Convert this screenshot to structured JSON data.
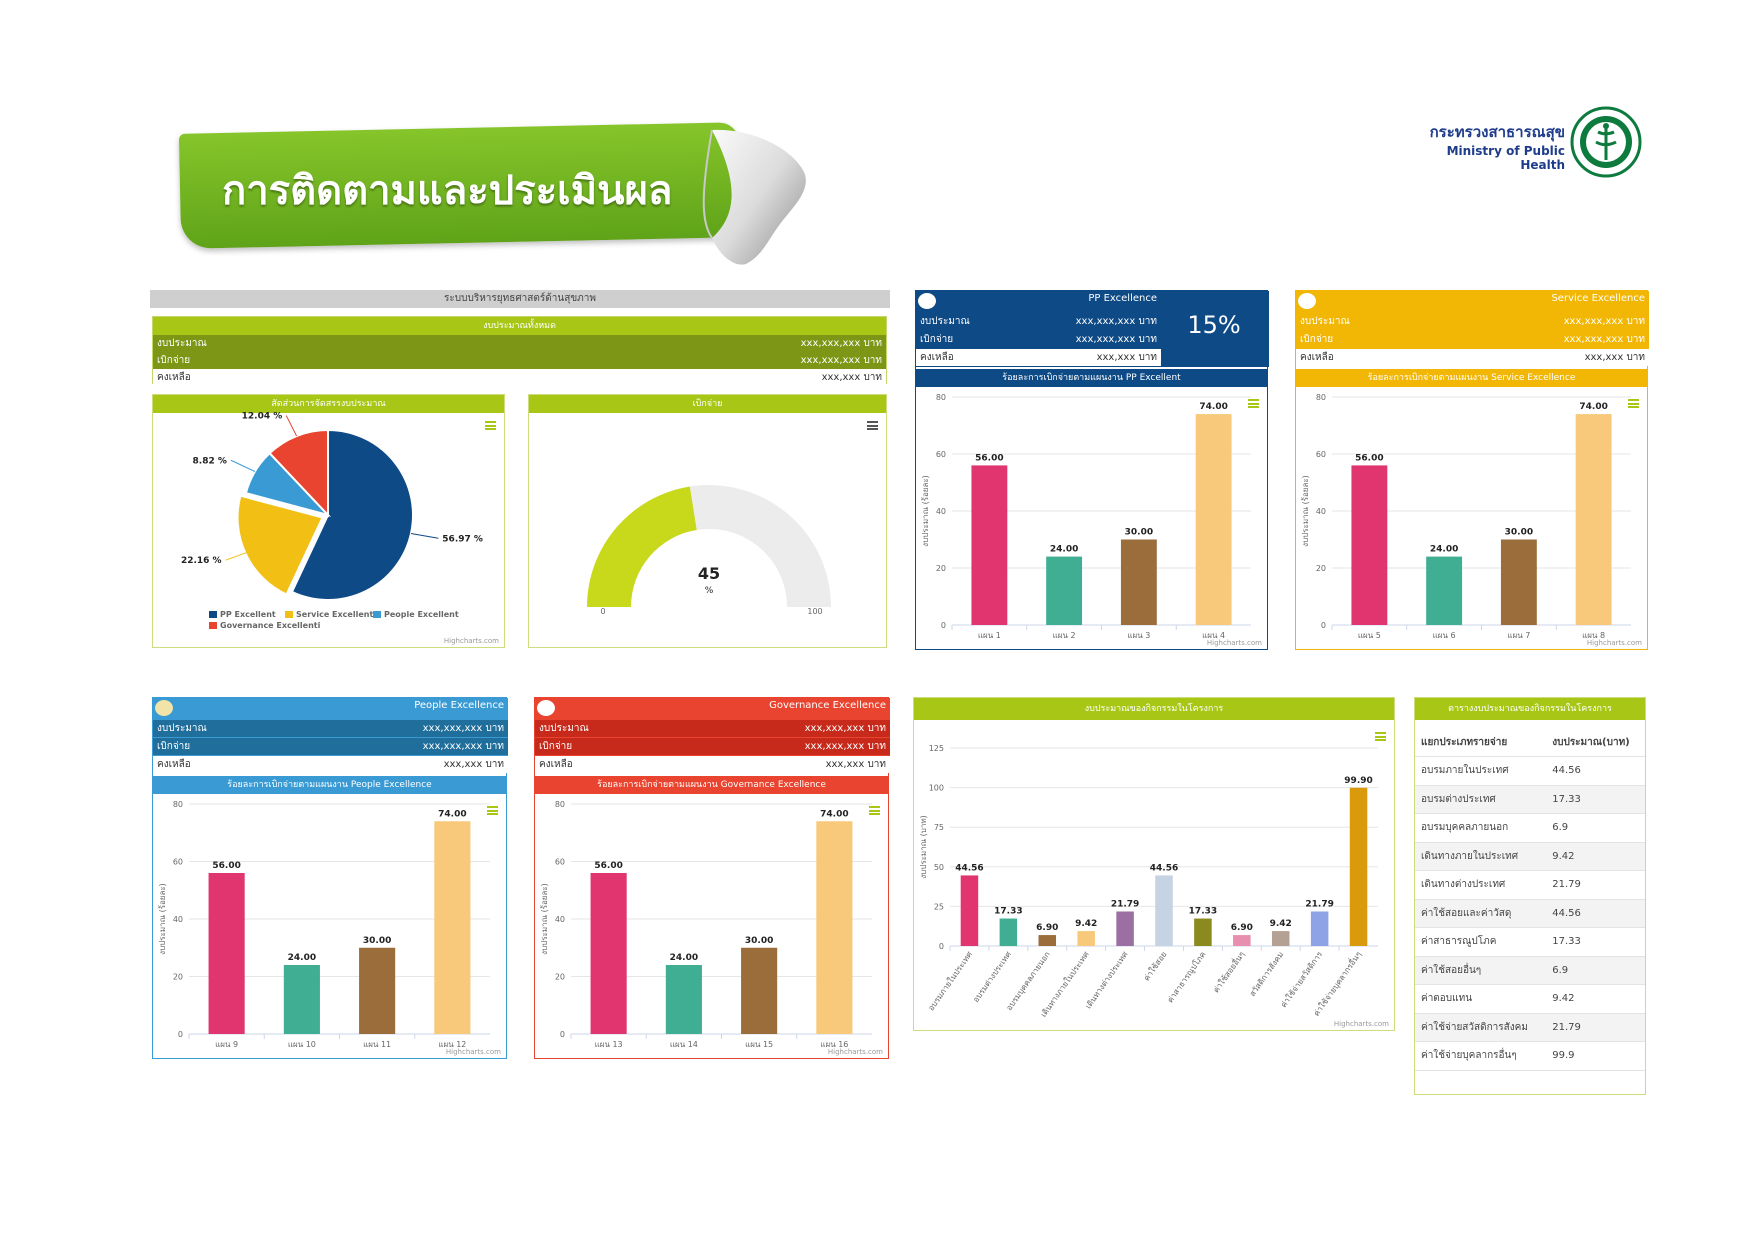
{
  "banner": {
    "title": "การติดตามและประเมินผล"
  },
  "logo": {
    "thai": "กระทรวงสาธารณสุข",
    "english": "Ministry of Public Health"
  },
  "overview": {
    "header": "ระบบบริหารยุทธศาสตร์ด้านสุขภาพ",
    "subheader": "งบประมาณทั้งหมด",
    "rows": [
      {
        "label": "งบประมาณ",
        "value": "xxx,xxx,xxx บาท"
      },
      {
        "label": "เบิกจ่าย",
        "value": "xxx,xxx,xxx บาท"
      },
      {
        "label": "คงเหลือ",
        "value": "xxx,xxx บาท"
      }
    ]
  },
  "pie_panel": {
    "title": "สัดส่วนการจัดสรรงบประมาณ",
    "credit": "Highcharts.com"
  },
  "gauge_panel": {
    "title": "เบิกจ่าย",
    "value": "45",
    "unit": "%",
    "min": "0",
    "max": "100"
  },
  "pp": {
    "name": "PP Excellence",
    "percent": "15%",
    "rows": [
      {
        "label": "งบประมาณ",
        "value": "xxx,xxx,xxx บาท"
      },
      {
        "label": "เบิกจ่าย",
        "value": "xxx,xxx,xxx บาท"
      },
      {
        "label": "คงเหลือ",
        "value": "xxx,xxx บาท"
      }
    ],
    "chart_title": "ร้อยละการเบิกจ่ายตามแผนงาน PP Excellent",
    "credit": "Highcharts.com"
  },
  "service": {
    "name": "Service Excellence",
    "rows": [
      {
        "label": "งบประมาณ",
        "value": "xxx,xxx,xxx บาท"
      },
      {
        "label": "เบิกจ่าย",
        "value": "xxx,xxx,xxx บาท"
      },
      {
        "label": "คงเหลือ",
        "value": "xxx,xxx บาท"
      }
    ],
    "chart_title": "ร้อยละการเบิกจ่ายตามแผนงาน Service Excellence",
    "credit": "Highcharts.com"
  },
  "people": {
    "name": "People Excellence",
    "rows": [
      {
        "label": "งบประมาณ",
        "value": "xxx,xxx,xxx บาท"
      },
      {
        "label": "เบิกจ่าย",
        "value": "xxx,xxx,xxx บาท"
      },
      {
        "label": "คงเหลือ",
        "value": "xxx,xxx บาท"
      }
    ],
    "chart_title": "ร้อยละการเบิกจ่ายตามแผนงาน People Excellence",
    "credit": "Highcharts.com"
  },
  "governance": {
    "name": "Governance Excellence",
    "rows": [
      {
        "label": "งบประมาณ",
        "value": "xxx,xxx,xxx บาท"
      },
      {
        "label": "เบิกจ่าย",
        "value": "xxx,xxx,xxx บาท"
      },
      {
        "label": "คงเหลือ",
        "value": "xxx,xxx บาท"
      }
    ],
    "chart_title": "ร้อยละการเบิกจ่ายตามแผนงาน Governance Excellence",
    "credit": "Highcharts.com"
  },
  "activity_panel": {
    "title": "งบประมาณของกิจกรรมในโครงการ",
    "credit": "Highcharts.com"
  },
  "budget_table": {
    "title": "ตารางงบประมาณของกิจกรรมในโครงการ",
    "columns": [
      "แยกประเภทรายจ่าย",
      "งบประมาณ(บาท)"
    ],
    "rows": [
      [
        "อบรมภายในประเทศ",
        "44.56"
      ],
      [
        "อบรมต่างประเทศ",
        "17.33"
      ],
      [
        "อบรมบุคคลภายนอก",
        "6.9"
      ],
      [
        "เดินทางภายในประเทศ",
        "9.42"
      ],
      [
        "เดินทางต่างประเทศ",
        "21.79"
      ],
      [
        "ค่าใช้สอยและค่าวัสดุ",
        "44.56"
      ],
      [
        "ค่าสาธารณูปโภค",
        "17.33"
      ],
      [
        "ค่าใช้สอยอื่นๆ",
        "6.9"
      ],
      [
        "ค่าตอบแทน",
        "9.42"
      ],
      [
        "ค่าใช้จ่ายสวัสดิการสังคม",
        "21.79"
      ],
      [
        "ค่าใช้จ่ายบุคลากรอื่นๆ",
        "99.9"
      ]
    ]
  },
  "colors": {
    "pp": "#0e4a86",
    "service": "#f2b705",
    "people": "#3a9bd4",
    "governance": "#e8442f",
    "green": "#a8c615",
    "olive": "#7d9615",
    "gauge": "#c7d91a"
  },
  "chart_data": [
    {
      "type": "pie",
      "labels": [
        "PP Excellent",
        "Service Excellent",
        "People Excellent",
        "Governance Excellenti"
      ],
      "values": [
        56.97,
        22.16,
        8.82,
        12.04
      ],
      "data_labels": [
        "56.97 %",
        "22.16 %",
        "8.82 %",
        "12.04 %"
      ],
      "colors": [
        "#0e4a86",
        "#f2c014",
        "#3a9bd4",
        "#e8442f"
      ],
      "legend_position": "bottom-left"
    },
    {
      "type": "gauge",
      "value": 45,
      "min": 0,
      "max": 100
    },
    {
      "type": "bar",
      "id": "pp",
      "categories": [
        "แผน 1",
        "แผน 2",
        "แผน 3",
        "แผน 4"
      ],
      "values": [
        56.0,
        24.0,
        30.0,
        74.0
      ],
      "ylabel": "งบประมาณ (ร้อยละ)",
      "ylim": [
        0,
        80
      ],
      "yticks": [
        0,
        20,
        40,
        60,
        80
      ],
      "colors": [
        "#e0356f",
        "#3fae92",
        "#9b6d3b",
        "#f8c97a"
      ]
    },
    {
      "type": "bar",
      "id": "service",
      "categories": [
        "แผน 5",
        "แผน 6",
        "แผน 7",
        "แผน 8"
      ],
      "values": [
        56.0,
        24.0,
        30.0,
        74.0
      ],
      "ylabel": "งบประมาณ (ร้อยละ)",
      "ylim": [
        0,
        80
      ],
      "yticks": [
        0,
        20,
        40,
        60,
        80
      ],
      "colors": [
        "#e0356f",
        "#3fae92",
        "#9b6d3b",
        "#f8c97a"
      ]
    },
    {
      "type": "bar",
      "id": "people",
      "categories": [
        "แผน 9",
        "แผน 10",
        "แผน 11",
        "แผน 12"
      ],
      "values": [
        56.0,
        24.0,
        30.0,
        74.0
      ],
      "ylabel": "งบประมาณ (ร้อยละ)",
      "ylim": [
        0,
        80
      ],
      "yticks": [
        0,
        20,
        40,
        60,
        80
      ],
      "colors": [
        "#e0356f",
        "#3fae92",
        "#9b6d3b",
        "#f8c97a"
      ]
    },
    {
      "type": "bar",
      "id": "governance",
      "categories": [
        "แผน 13",
        "แผน 14",
        "แผน 15",
        "แผน 16"
      ],
      "values": [
        56.0,
        24.0,
        30.0,
        74.0
      ],
      "ylabel": "งบประมาณ (ร้อยละ)",
      "ylim": [
        0,
        80
      ],
      "yticks": [
        0,
        20,
        40,
        60,
        80
      ],
      "colors": [
        "#e0356f",
        "#3fae92",
        "#9b6d3b",
        "#f8c97a"
      ]
    },
    {
      "type": "bar",
      "id": "activity",
      "categories": [
        "อบรมภายในประเทศ",
        "อบรมต่างประเทศ",
        "อบรมบุคคลภายนอก",
        "เดินทางภายในประเทศ",
        "เดินทางต่างประเทศ",
        "ค่าใช้สอย",
        "ค่าสาธารณูปโภค",
        "ค่าใช้สอยอื่นๆ",
        "สวัสดิการสังคม",
        "ค่าใช้จ่ายสวัสดิการ",
        "ค่าใช้จ่ายบุคลากรอื่นๆ"
      ],
      "values": [
        44.56,
        17.33,
        6.9,
        9.42,
        21.79,
        44.56,
        17.33,
        6.9,
        9.42,
        21.79,
        99.9
      ],
      "ylabel": "งบประมาณ (บาท)",
      "ylim": [
        0,
        125
      ],
      "yticks": [
        0,
        25,
        50,
        75,
        100,
        125
      ],
      "colors": [
        "#e0356f",
        "#3fae92",
        "#9b6d3b",
        "#f8c97a",
        "#9b6fa2",
        "#c5d3e3",
        "#8a8a1e",
        "#e88fb0",
        "#b4a194",
        "#8ea3e6",
        "#d99a0b"
      ]
    }
  ]
}
